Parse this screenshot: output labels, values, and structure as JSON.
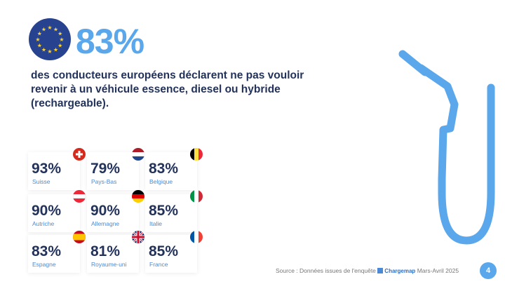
{
  "headline": {
    "percent": "83%",
    "text": "des conducteurs européens déclarent ne pas vouloir revenir à un véhicule essence, diesel ou hybride (rechargeable)."
  },
  "countries": [
    {
      "pct": "93%",
      "name": "Suisse",
      "flag": "ch"
    },
    {
      "pct": "79%",
      "name": "Pays-Bas",
      "flag": "nl"
    },
    {
      "pct": "83%",
      "name": "Belgique",
      "flag": "be"
    },
    {
      "pct": "90%",
      "name": "Autriche",
      "flag": "at"
    },
    {
      "pct": "90%",
      "name": "Allemagne",
      "flag": "de"
    },
    {
      "pct": "85%",
      "name": "Italie",
      "flag": "it"
    },
    {
      "pct": "83%",
      "name": "Espagne",
      "flag": "es"
    },
    {
      "pct": "81%",
      "name": "Royaume-uni",
      "flag": "gb"
    },
    {
      "pct": "85%",
      "name": "France",
      "flag": "fr"
    }
  ],
  "footer": {
    "source": "Source : Données issues de l'enquête",
    "brand": "Chargemap",
    "period": "Mars-Avril 2025",
    "page": "4"
  },
  "colors": {
    "accent": "#5aa7ec",
    "text": "#22325a"
  }
}
